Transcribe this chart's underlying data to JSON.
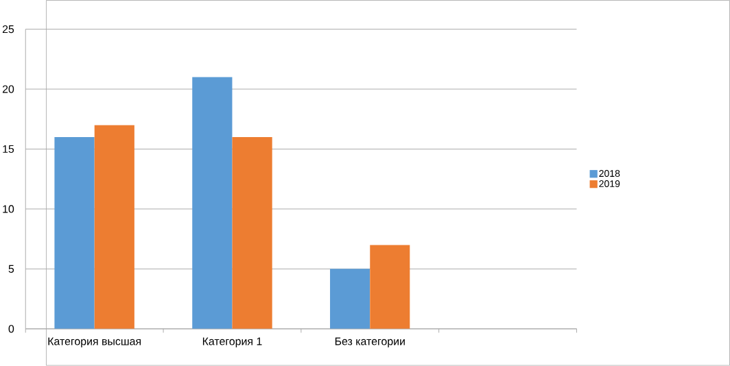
{
  "chart_data": {
    "type": "bar",
    "categories": [
      "Категория высшая",
      "Категория 1",
      "Без категории",
      null
    ],
    "series": [
      {
        "name": "2018",
        "color": "#5b9bd5",
        "values": [
          16,
          21,
          5,
          null
        ]
      },
      {
        "name": "2019",
        "color": "#ed7d31",
        "values": [
          17,
          16,
          7,
          null
        ]
      }
    ],
    "ylim": [
      0,
      25
    ],
    "yticks": [
      0,
      5,
      10,
      15,
      20,
      25
    ],
    "grid": "y",
    "legend": "right"
  }
}
